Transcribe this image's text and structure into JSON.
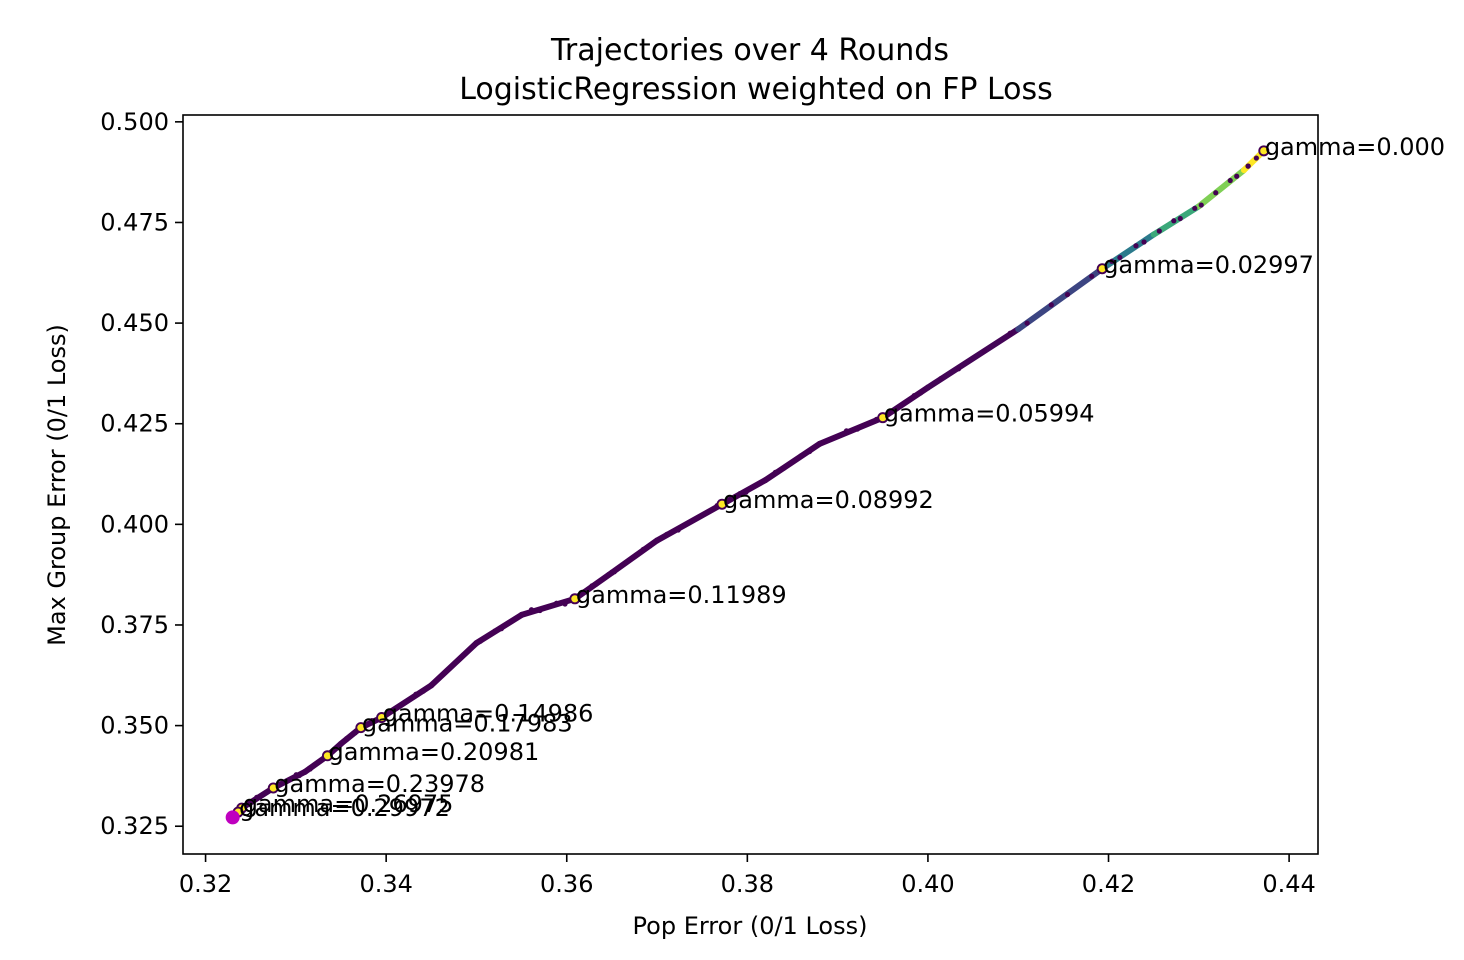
{
  "chart_data": {
    "type": "scatter",
    "title": "Trajectories over 4 Rounds",
    "subtitle": "LogisticRegression weighted on FP Loss",
    "xlabel": "Pop Error (0/1 Loss)",
    "ylabel": "Max Group Error (0/1 Loss)",
    "xlim": [
      0.3175,
      0.4432
    ],
    "ylim": [
      0.3181,
      0.5017
    ],
    "xticks": [
      0.32,
      0.34,
      0.36,
      0.38,
      0.4,
      0.42,
      0.44
    ],
    "xtick_labels": [
      "0.32",
      "0.34",
      "0.36",
      "0.38",
      "0.40",
      "0.42",
      "0.44"
    ],
    "yticks": [
      0.325,
      0.35,
      0.375,
      0.4,
      0.425,
      0.45,
      0.475,
      0.5
    ],
    "ytick_labels": [
      "0.325",
      "0.350",
      "0.375",
      "0.400",
      "0.425",
      "0.450",
      "0.475",
      "0.500"
    ],
    "grid": false,
    "legend": "none",
    "colormap": [
      "#440154",
      "#3b528b",
      "#21918c",
      "#5ec962",
      "#fde725"
    ],
    "highlight_color": "#bf00bf",
    "trajectory": {
      "x": [
        0.323,
        0.324,
        0.3275,
        0.331,
        0.3335,
        0.335,
        0.3372,
        0.3395,
        0.345,
        0.35,
        0.355,
        0.3609,
        0.365,
        0.37,
        0.3772,
        0.382,
        0.388,
        0.395,
        0.4,
        0.41,
        0.4193,
        0.425,
        0.43,
        0.435,
        0.4372
      ],
      "y": [
        0.3272,
        0.3295,
        0.3345,
        0.3385,
        0.3425,
        0.3455,
        0.3495,
        0.352,
        0.36,
        0.3705,
        0.3775,
        0.3815,
        0.388,
        0.396,
        0.405,
        0.411,
        0.42,
        0.4265,
        0.434,
        0.4485,
        0.4635,
        0.472,
        0.479,
        0.488,
        0.4928
      ]
    },
    "markers": {
      "gamma": [
        "0.000",
        "0.02997",
        "0.05994",
        "0.08992",
        "0.11989",
        "0.14986",
        "0.17983",
        "0.20981",
        "0.23978",
        "0.26975",
        "0.29972"
      ],
      "x": [
        0.4372,
        0.4193,
        0.395,
        0.3772,
        0.3609,
        0.3395,
        0.3372,
        0.3335,
        0.3275,
        0.324,
        0.3236
      ],
      "y": [
        0.4928,
        0.4635,
        0.4265,
        0.405,
        0.3815,
        0.352,
        0.3495,
        0.3425,
        0.3345,
        0.3295,
        0.3285
      ]
    },
    "annotations": [
      {
        "text": "gamma=0.000",
        "x": 0.4372,
        "y": 0.4928
      },
      {
        "text": "gamma=0.02997",
        "x": 0.4193,
        "y": 0.4635
      },
      {
        "text": "gamma=0.05994",
        "x": 0.395,
        "y": 0.4265
      },
      {
        "text": "gamma=0.08992",
        "x": 0.3772,
        "y": 0.405
      },
      {
        "text": "gamma=0.11989",
        "x": 0.3609,
        "y": 0.3815
      },
      {
        "text": "gamma=0.14986",
        "x": 0.3395,
        "y": 0.352
      },
      {
        "text": "gamma=0.17983",
        "x": 0.3372,
        "y": 0.3495
      },
      {
        "text": "gamma=0.20981",
        "x": 0.3335,
        "y": 0.3425
      },
      {
        "text": "gamma=0.23978",
        "x": 0.3275,
        "y": 0.3345
      },
      {
        "text": "gamma=0.26975",
        "x": 0.324,
        "y": 0.3295
      },
      {
        "text": "gamma=0.29972",
        "x": 0.3236,
        "y": 0.3285
      }
    ],
    "final_point": {
      "x": 0.323,
      "y": 0.3272
    }
  }
}
